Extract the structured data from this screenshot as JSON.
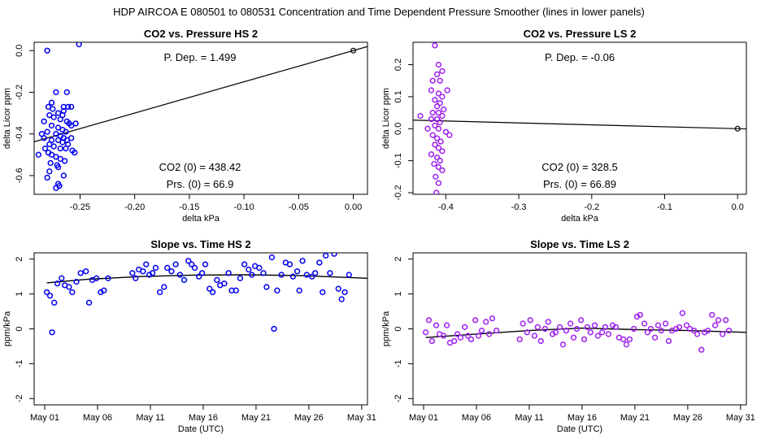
{
  "figure_title": "HDP    AIRCOA E    080501 to 080531    Concentration and Time Dependent Pressure Smoother (lines in lower panels)",
  "colors": {
    "hs": "#0000ee",
    "ls": "#a020f0",
    "line": "#000000"
  },
  "chart_data": [
    {
      "id": "hs-pressure",
      "type": "scatter",
      "title": "CO2 vs. Pressure HS 2",
      "xlabel": "delta kPa",
      "ylabel": "delta Licor ppm",
      "xlim": [
        -0.292,
        0.013
      ],
      "ylim": [
        -0.69,
        0.04
      ],
      "xticks": [
        -0.25,
        -0.2,
        -0.15,
        -0.1,
        -0.05,
        0.0
      ],
      "xtick_labels": [
        "-0.25",
        "-0.20",
        "-0.15",
        "-0.10",
        "-0.05",
        "0.00"
      ],
      "yticks": [
        0.0,
        -0.2,
        -0.4,
        -0.6
      ],
      "ytick_labels": [
        "0.0",
        "-0.2",
        "-0.4",
        "-0.6"
      ],
      "color_key": "hs",
      "annotations": {
        "p_dep": "P. Dep. =  1.499",
        "co2_0": "CO2 (0) =  438.42",
        "prs_0": "Prs. (0) =  66.9"
      },
      "fit_line": {
        "x": [
          -0.292,
          0.013
        ],
        "y": [
          -0.4377,
          0.0195
        ]
      },
      "origin_point": [
        0.0,
        0.0
      ],
      "points": [
        [
          -0.28,
          0.0
        ],
        [
          -0.251,
          0.03
        ],
        [
          -0.283,
          -0.34
        ],
        [
          -0.272,
          -0.2
        ],
        [
          -0.262,
          -0.2
        ],
        [
          -0.279,
          -0.27
        ],
        [
          -0.276,
          -0.25
        ],
        [
          -0.265,
          -0.27
        ],
        [
          -0.258,
          -0.27
        ],
        [
          -0.261,
          -0.27
        ],
        [
          -0.27,
          -0.3
        ],
        [
          -0.265,
          -0.29
        ],
        [
          -0.254,
          -0.35
        ],
        [
          -0.278,
          -0.31
        ],
        [
          -0.274,
          -0.32
        ],
        [
          -0.268,
          -0.33
        ],
        [
          -0.262,
          -0.34
        ],
        [
          -0.258,
          -0.36
        ],
        [
          -0.276,
          -0.36
        ],
        [
          -0.27,
          -0.37
        ],
        [
          -0.266,
          -0.38
        ],
        [
          -0.263,
          -0.39
        ],
        [
          -0.28,
          -0.39
        ],
        [
          -0.285,
          -0.4
        ],
        [
          -0.272,
          -0.4
        ],
        [
          -0.268,
          -0.41
        ],
        [
          -0.265,
          -0.42
        ],
        [
          -0.262,
          -0.43
        ],
        [
          -0.258,
          -0.42
        ],
        [
          -0.276,
          -0.43
        ],
        [
          -0.27,
          -0.43
        ],
        [
          -0.266,
          -0.44
        ],
        [
          -0.261,
          -0.45
        ],
        [
          -0.278,
          -0.45
        ],
        [
          -0.274,
          -0.46
        ],
        [
          -0.268,
          -0.47
        ],
        [
          -0.263,
          -0.47
        ],
        [
          -0.257,
          -0.48
        ],
        [
          -0.255,
          -0.49
        ],
        [
          -0.282,
          -0.47
        ],
        [
          -0.279,
          -0.49
        ],
        [
          -0.276,
          -0.5
        ],
        [
          -0.288,
          -0.5
        ],
        [
          -0.272,
          -0.51
        ],
        [
          -0.268,
          -0.52
        ],
        [
          -0.264,
          -0.53
        ],
        [
          -0.277,
          -0.54
        ],
        [
          -0.271,
          -0.55
        ],
        [
          -0.27,
          -0.56
        ],
        [
          -0.278,
          -0.58
        ],
        [
          -0.265,
          -0.6
        ],
        [
          -0.28,
          -0.61
        ],
        [
          -0.27,
          -0.64
        ],
        [
          -0.272,
          -0.66
        ],
        [
          -0.269,
          -0.65
        ],
        [
          -0.26,
          -0.35
        ],
        [
          -0.283,
          -0.42
        ],
        [
          -0.275,
          -0.28
        ],
        [
          -0.266,
          -0.31
        ]
      ]
    },
    {
      "id": "ls-pressure",
      "type": "scatter",
      "title": "CO2 vs. Pressure LS 2",
      "xlabel": "delta kPa",
      "ylabel": "delta Licor ppm",
      "xlim": [
        -0.445,
        0.012
      ],
      "ylim": [
        -0.205,
        0.27
      ],
      "xticks": [
        -0.4,
        -0.3,
        -0.2,
        -0.1,
        0.0
      ],
      "xtick_labels": [
        "-0.4",
        "-0.3",
        "-0.2",
        "-0.1",
        "0.0"
      ],
      "yticks": [
        0.2,
        0.1,
        0.0,
        -0.1,
        -0.2
      ],
      "ytick_labels": [
        "0.2",
        "0.1",
        "0.0",
        "-0.1",
        "-0.2"
      ],
      "color_key": "ls",
      "annotations": {
        "p_dep": "P. Dep. =  -0.06",
        "co2_0": "CO2 (0) =  328.5",
        "prs_0": "Prs. (0) =  66.89"
      },
      "fit_line": {
        "x": [
          -0.445,
          0.012
        ],
        "y": [
          0.0267,
          -0.0007
        ]
      },
      "origin_point": [
        0.0,
        0.0
      ],
      "points": [
        [
          -0.415,
          0.26
        ],
        [
          -0.41,
          0.2
        ],
        [
          -0.405,
          0.18
        ],
        [
          -0.412,
          0.17
        ],
        [
          -0.418,
          0.15
        ],
        [
          -0.408,
          0.15
        ],
        [
          -0.42,
          0.12
        ],
        [
          -0.41,
          0.11
        ],
        [
          -0.405,
          0.1
        ],
        [
          -0.415,
          0.09
        ],
        [
          -0.408,
          0.08
        ],
        [
          -0.412,
          0.07
        ],
        [
          -0.403,
          0.06
        ],
        [
          -0.418,
          0.05
        ],
        [
          -0.41,
          0.05
        ],
        [
          -0.405,
          0.04
        ],
        [
          -0.42,
          0.03
        ],
        [
          -0.412,
          0.03
        ],
        [
          -0.408,
          0.02
        ],
        [
          -0.415,
          0.01
        ],
        [
          -0.41,
          0.0
        ],
        [
          -0.4,
          -0.01
        ],
        [
          -0.418,
          -0.02
        ],
        [
          -0.412,
          -0.03
        ],
        [
          -0.407,
          -0.04
        ],
        [
          -0.415,
          -0.05
        ],
        [
          -0.41,
          -0.06
        ],
        [
          -0.405,
          -0.07
        ],
        [
          -0.42,
          -0.08
        ],
        [
          -0.412,
          -0.09
        ],
        [
          -0.408,
          -0.1
        ],
        [
          -0.416,
          -0.11
        ],
        [
          -0.41,
          -0.12
        ],
        [
          -0.405,
          -0.13
        ],
        [
          -0.414,
          -0.15
        ],
        [
          -0.41,
          -0.17
        ],
        [
          -0.413,
          -0.2
        ],
        [
          -0.435,
          0.04
        ],
        [
          -0.425,
          0.0
        ],
        [
          -0.395,
          -0.02
        ],
        [
          -0.398,
          0.12
        ]
      ]
    },
    {
      "id": "hs-time",
      "type": "scatter",
      "title": "Slope vs. Time HS 2",
      "xlabel": "Date (UTC)",
      "ylabel": "ppm/kPa",
      "xlim": [
        0.0,
        31.55
      ],
      "ylim": [
        -2.18,
        2.18
      ],
      "xticks": [
        1,
        6,
        11,
        16,
        21,
        26,
        31
      ],
      "xtick_labels": [
        "May 01",
        "May 06",
        "May 11",
        "May 16",
        "May 21",
        "May 26",
        "May 31"
      ],
      "yticks": [
        2,
        1,
        0,
        -1,
        -2
      ],
      "ytick_labels": [
        "2",
        "1",
        "0",
        "-1",
        "-2"
      ],
      "color_key": "hs",
      "smoother": {
        "x": [
          1.2,
          5,
          10,
          15,
          20,
          25,
          31.6
        ],
        "y": [
          1.32,
          1.42,
          1.5,
          1.54,
          1.55,
          1.53,
          1.45
        ]
      },
      "points": [
        [
          1.2,
          1.05
        ],
        [
          1.5,
          0.95
        ],
        [
          1.9,
          0.75
        ],
        [
          1.7,
          -0.1
        ],
        [
          2.2,
          1.3
        ],
        [
          2.6,
          1.45
        ],
        [
          2.9,
          1.25
        ],
        [
          3.3,
          1.2
        ],
        [
          3.6,
          1.05
        ],
        [
          4.0,
          1.35
        ],
        [
          4.4,
          1.6
        ],
        [
          4.9,
          1.65
        ],
        [
          5.2,
          0.75
        ],
        [
          5.5,
          1.4
        ],
        [
          5.9,
          1.45
        ],
        [
          6.3,
          1.05
        ],
        [
          6.6,
          1.1
        ],
        [
          7.0,
          1.45
        ],
        [
          9.3,
          1.6
        ],
        [
          9.6,
          1.45
        ],
        [
          9.9,
          1.7
        ],
        [
          10.3,
          1.65
        ],
        [
          10.6,
          1.85
        ],
        [
          10.9,
          1.55
        ],
        [
          11.2,
          1.6
        ],
        [
          11.5,
          1.75
        ],
        [
          11.9,
          1.05
        ],
        [
          12.3,
          1.2
        ],
        [
          12.6,
          1.75
        ],
        [
          13.0,
          1.65
        ],
        [
          13.4,
          1.85
        ],
        [
          13.8,
          1.55
        ],
        [
          14.2,
          1.4
        ],
        [
          14.6,
          1.95
        ],
        [
          14.9,
          1.85
        ],
        [
          15.2,
          1.75
        ],
        [
          15.6,
          1.5
        ],
        [
          15.9,
          1.6
        ],
        [
          16.2,
          1.85
        ],
        [
          16.6,
          1.15
        ],
        [
          16.9,
          1.05
        ],
        [
          17.3,
          1.4
        ],
        [
          17.6,
          1.25
        ],
        [
          18.0,
          1.3
        ],
        [
          18.4,
          1.6
        ],
        [
          18.7,
          1.1
        ],
        [
          19.1,
          1.1
        ],
        [
          19.5,
          1.45
        ],
        [
          19.9,
          1.85
        ],
        [
          20.3,
          1.7
        ],
        [
          20.6,
          1.55
        ],
        [
          20.9,
          1.8
        ],
        [
          21.3,
          1.75
        ],
        [
          21.7,
          1.6
        ],
        [
          22.0,
          1.2
        ],
        [
          22.5,
          2.05
        ],
        [
          22.7,
          0.0
        ],
        [
          23.0,
          1.1
        ],
        [
          23.4,
          1.55
        ],
        [
          23.8,
          1.9
        ],
        [
          24.2,
          1.85
        ],
        [
          24.5,
          1.5
        ],
        [
          24.9,
          1.65
        ],
        [
          25.1,
          1.1
        ],
        [
          25.4,
          1.95
        ],
        [
          25.8,
          1.55
        ],
        [
          26.3,
          1.5
        ],
        [
          26.6,
          1.6
        ],
        [
          27.0,
          1.9
        ],
        [
          27.3,
          1.05
        ],
        [
          27.6,
          2.1
        ],
        [
          28.0,
          1.6
        ],
        [
          28.4,
          2.15
        ],
        [
          28.8,
          1.15
        ],
        [
          29.1,
          0.85
        ],
        [
          29.4,
          1.05
        ],
        [
          29.8,
          1.55
        ]
      ]
    },
    {
      "id": "ls-time",
      "type": "scatter",
      "title": "Slope vs. Time LS 2",
      "xlabel": "Date (UTC)",
      "ylabel": "ppm/kPa",
      "xlim": [
        0.0,
        31.55
      ],
      "ylim": [
        -2.18,
        2.18
      ],
      "xticks": [
        1,
        6,
        11,
        16,
        21,
        26,
        31
      ],
      "xtick_labels": [
        "May 01",
        "May 06",
        "May 11",
        "May 16",
        "May 21",
        "May 26",
        "May 31"
      ],
      "yticks": [
        2,
        1,
        0,
        -1,
        -2
      ],
      "ytick_labels": [
        "2",
        "1",
        "0",
        "-1",
        "-2"
      ],
      "color_key": "ls",
      "smoother": {
        "x": [
          1.2,
          6,
          11,
          16,
          21,
          26,
          31.6
        ],
        "y": [
          -0.25,
          -0.15,
          -0.05,
          0.02,
          -0.02,
          -0.05,
          -0.1
        ]
      },
      "points": [
        [
          1.2,
          -0.1
        ],
        [
          1.5,
          0.25
        ],
        [
          1.8,
          -0.35
        ],
        [
          2.2,
          0.1
        ],
        [
          2.5,
          -0.15
        ],
        [
          2.9,
          -0.2
        ],
        [
          3.2,
          0.1
        ],
        [
          3.5,
          -0.4
        ],
        [
          3.9,
          -0.35
        ],
        [
          4.2,
          -0.15
        ],
        [
          4.5,
          -0.25
        ],
        [
          4.9,
          0.05
        ],
        [
          5.2,
          -0.2
        ],
        [
          5.5,
          -0.3
        ],
        [
          5.9,
          0.25
        ],
        [
          6.2,
          -0.2
        ],
        [
          6.5,
          -0.05
        ],
        [
          6.9,
          0.2
        ],
        [
          7.2,
          -0.15
        ],
        [
          7.5,
          0.3
        ],
        [
          7.9,
          -0.05
        ],
        [
          10.1,
          -0.3
        ],
        [
          10.4,
          0.15
        ],
        [
          10.8,
          -0.1
        ],
        [
          11.1,
          0.25
        ],
        [
          11.5,
          -0.2
        ],
        [
          11.8,
          0.05
        ],
        [
          12.1,
          -0.35
        ],
        [
          12.5,
          0.0
        ],
        [
          12.8,
          0.2
        ],
        [
          13.2,
          -0.15
        ],
        [
          13.5,
          -0.1
        ],
        [
          13.9,
          0.05
        ],
        [
          14.2,
          -0.45
        ],
        [
          14.5,
          -0.05
        ],
        [
          14.9,
          0.15
        ],
        [
          15.2,
          -0.25
        ],
        [
          15.5,
          0.0
        ],
        [
          15.9,
          0.25
        ],
        [
          16.2,
          -0.3
        ],
        [
          16.5,
          0.05
        ],
        [
          16.8,
          -0.1
        ],
        [
          17.2,
          0.1
        ],
        [
          17.5,
          -0.2
        ],
        [
          17.9,
          -0.1
        ],
        [
          18.2,
          0.05
        ],
        [
          18.5,
          -0.15
        ],
        [
          18.9,
          0.1
        ],
        [
          19.2,
          0.05
        ],
        [
          19.5,
          -0.25
        ],
        [
          19.9,
          -0.3
        ],
        [
          20.2,
          -0.45
        ],
        [
          20.5,
          -0.3
        ],
        [
          20.9,
          0.0
        ],
        [
          21.2,
          0.35
        ],
        [
          21.5,
          0.4
        ],
        [
          21.9,
          0.15
        ],
        [
          22.2,
          -0.1
        ],
        [
          22.5,
          0.0
        ],
        [
          22.9,
          -0.25
        ],
        [
          23.2,
          0.1
        ],
        [
          23.5,
          -0.05
        ],
        [
          23.9,
          0.15
        ],
        [
          24.2,
          -0.35
        ],
        [
          24.5,
          -0.05
        ],
        [
          24.9,
          0.0
        ],
        [
          25.2,
          0.05
        ],
        [
          25.5,
          0.45
        ],
        [
          25.9,
          0.1
        ],
        [
          26.2,
          0.0
        ],
        [
          26.6,
          -0.05
        ],
        [
          26.9,
          -0.15
        ],
        [
          27.3,
          -0.6
        ],
        [
          27.6,
          -0.1
        ],
        [
          27.9,
          -0.05
        ],
        [
          28.3,
          0.4
        ],
        [
          28.6,
          0.1
        ],
        [
          28.9,
          0.25
        ],
        [
          29.3,
          -0.15
        ],
        [
          29.6,
          0.25
        ],
        [
          29.9,
          -0.05
        ]
      ]
    }
  ]
}
